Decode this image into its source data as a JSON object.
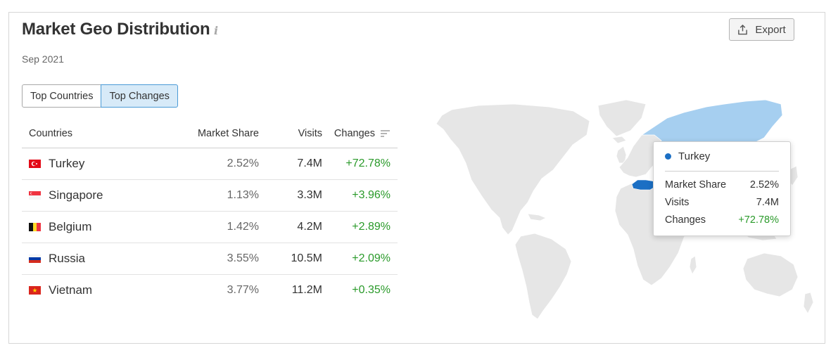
{
  "header": {
    "title": "Market Geo Distribution",
    "info_icon": "i",
    "date": "Sep 2021",
    "export_label": "Export"
  },
  "tabs": [
    {
      "label": "Top Countries",
      "active": false
    },
    {
      "label": "Top Changes",
      "active": true
    }
  ],
  "table": {
    "columns": {
      "country": "Countries",
      "share": "Market Share",
      "visits": "Visits",
      "changes": "Changes"
    },
    "rows": [
      {
        "country": "Turkey",
        "flag": "turkey-flag-icon",
        "share": "2.52%",
        "visits": "7.4M",
        "change": "+72.78%"
      },
      {
        "country": "Singapore",
        "flag": "singapore-flag-icon",
        "share": "1.13%",
        "visits": "3.3M",
        "change": "+3.96%"
      },
      {
        "country": "Belgium",
        "flag": "belgium-flag-icon",
        "share": "1.42%",
        "visits": "4.2M",
        "change": "+2.89%"
      },
      {
        "country": "Russia",
        "flag": "russia-flag-icon",
        "share": "3.55%",
        "visits": "10.5M",
        "change": "+2.09%"
      },
      {
        "country": "Vietnam",
        "flag": "vietnam-flag-icon",
        "share": "3.77%",
        "visits": "11.2M",
        "change": "+0.35%"
      }
    ]
  },
  "tooltip": {
    "country": "Turkey",
    "share_label": "Market Share",
    "share": "2.52%",
    "visits_label": "Visits",
    "visits": "7.4M",
    "changes_label": "Changes",
    "changes": "+72.78%"
  },
  "colors": {
    "accent": "#1b6fc4",
    "positive": "#2a9a2a",
    "map_land": "#e6e6e6",
    "map_highlight_light": "#a6cff0",
    "map_highlight_dark": "#1b6fc4",
    "tab_active_bg": "#d7eaf8"
  }
}
